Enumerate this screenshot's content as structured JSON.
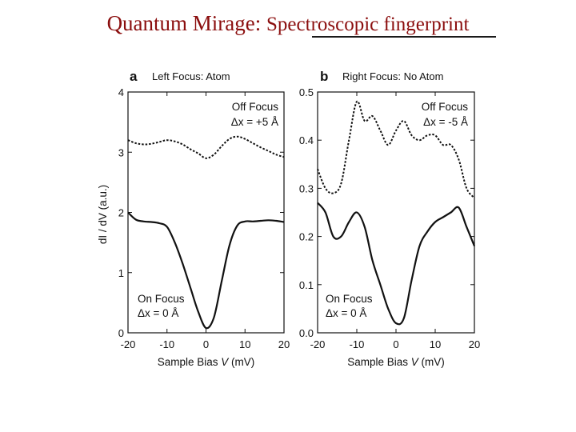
{
  "slide": {
    "title_main": "Quantum Mirage:",
    "title_sub": "Spectroscopic fingerprint"
  },
  "colors": {
    "title": "#8b0e0e",
    "ink": "#111111"
  },
  "chart_data": [
    {
      "type": "line",
      "panel_letter": "a",
      "panel_title": "Left Focus: Atom",
      "xlabel_text": "Sample Bias",
      "xlabel_var": "V",
      "xlabel_unit": "(mV)",
      "ylabel_text": "dI / dV  (a.u.)",
      "xlim": [
        -20,
        20
      ],
      "ylim": [
        0,
        4
      ],
      "x_ticks": [
        -20,
        -10,
        0,
        10,
        20
      ],
      "y_ticks": [
        0,
        1,
        2,
        3,
        4
      ],
      "x_tick_labels": [
        "-20",
        "-10",
        "0",
        "10",
        "20"
      ],
      "y_tick_labels": [
        "0",
        "1",
        "2",
        "3",
        "4"
      ],
      "annotations": {
        "upper_line1": "Off Focus",
        "upper_line2": "Δx = +5 Å",
        "lower_line1": "On Focus",
        "lower_line2": "Δx = 0 Å"
      },
      "series": [
        {
          "style": "dashed",
          "x": [
            -20,
            -18,
            -16,
            -14,
            -12,
            -10,
            -8,
            -6,
            -4,
            -2,
            0,
            2,
            4,
            6,
            8,
            10,
            12,
            14,
            16,
            18,
            20
          ],
          "y": [
            3.2,
            3.15,
            3.13,
            3.14,
            3.17,
            3.2,
            3.18,
            3.13,
            3.05,
            2.98,
            2.9,
            2.96,
            3.1,
            3.22,
            3.26,
            3.22,
            3.15,
            3.08,
            3.02,
            2.96,
            2.92
          ]
        },
        {
          "style": "solid",
          "x": [
            -20,
            -18,
            -16,
            -14,
            -12,
            -10,
            -8,
            -6,
            -4,
            -2,
            0,
            2,
            4,
            6,
            8,
            10,
            12,
            14,
            16,
            18,
            20
          ],
          "y": [
            2.0,
            1.88,
            1.85,
            1.84,
            1.82,
            1.76,
            1.5,
            1.15,
            0.75,
            0.35,
            0.08,
            0.25,
            0.85,
            1.45,
            1.78,
            1.85,
            1.85,
            1.86,
            1.87,
            1.86,
            1.84
          ]
        }
      ]
    },
    {
      "type": "line",
      "panel_letter": "b",
      "panel_title": "Right Focus: No Atom",
      "xlabel_text": "Sample Bias",
      "xlabel_var": "V",
      "xlabel_unit": "(mV)",
      "xlim": [
        -20,
        20
      ],
      "ylim": [
        0,
        0.5
      ],
      "x_ticks": [
        -20,
        -10,
        0,
        10,
        20
      ],
      "y_ticks": [
        0,
        0.1,
        0.2,
        0.3,
        0.4,
        0.5
      ],
      "x_tick_labels": [
        "-20",
        "-10",
        "0",
        "10",
        "20"
      ],
      "y_tick_labels": [
        "0.0",
        "0.1",
        "0.2",
        "0.3",
        "0.4",
        "0.5"
      ],
      "annotations": {
        "upper_line1": "Off Focus",
        "upper_line2": "Δx = -5 Å",
        "lower_line1": "On Focus",
        "lower_line2": "Δx = 0 Å"
      },
      "series": [
        {
          "style": "dashed",
          "x": [
            -20,
            -18,
            -16,
            -14,
            -12,
            -10,
            -8,
            -6,
            -4,
            -2,
            0,
            2,
            4,
            6,
            8,
            10,
            12,
            14,
            16,
            18,
            20
          ],
          "y": [
            0.34,
            0.3,
            0.29,
            0.31,
            0.4,
            0.48,
            0.44,
            0.45,
            0.42,
            0.39,
            0.42,
            0.44,
            0.41,
            0.4,
            0.41,
            0.41,
            0.39,
            0.39,
            0.36,
            0.3,
            0.28
          ]
        },
        {
          "style": "solid",
          "x": [
            -20,
            -18,
            -16,
            -14,
            -12,
            -10,
            -8,
            -6,
            -4,
            -2,
            0,
            2,
            4,
            6,
            8,
            10,
            12,
            14,
            16,
            18,
            20
          ],
          "y": [
            0.27,
            0.25,
            0.2,
            0.2,
            0.23,
            0.25,
            0.22,
            0.15,
            0.1,
            0.05,
            0.02,
            0.03,
            0.11,
            0.18,
            0.21,
            0.23,
            0.24,
            0.25,
            0.26,
            0.22,
            0.18
          ]
        }
      ]
    }
  ]
}
